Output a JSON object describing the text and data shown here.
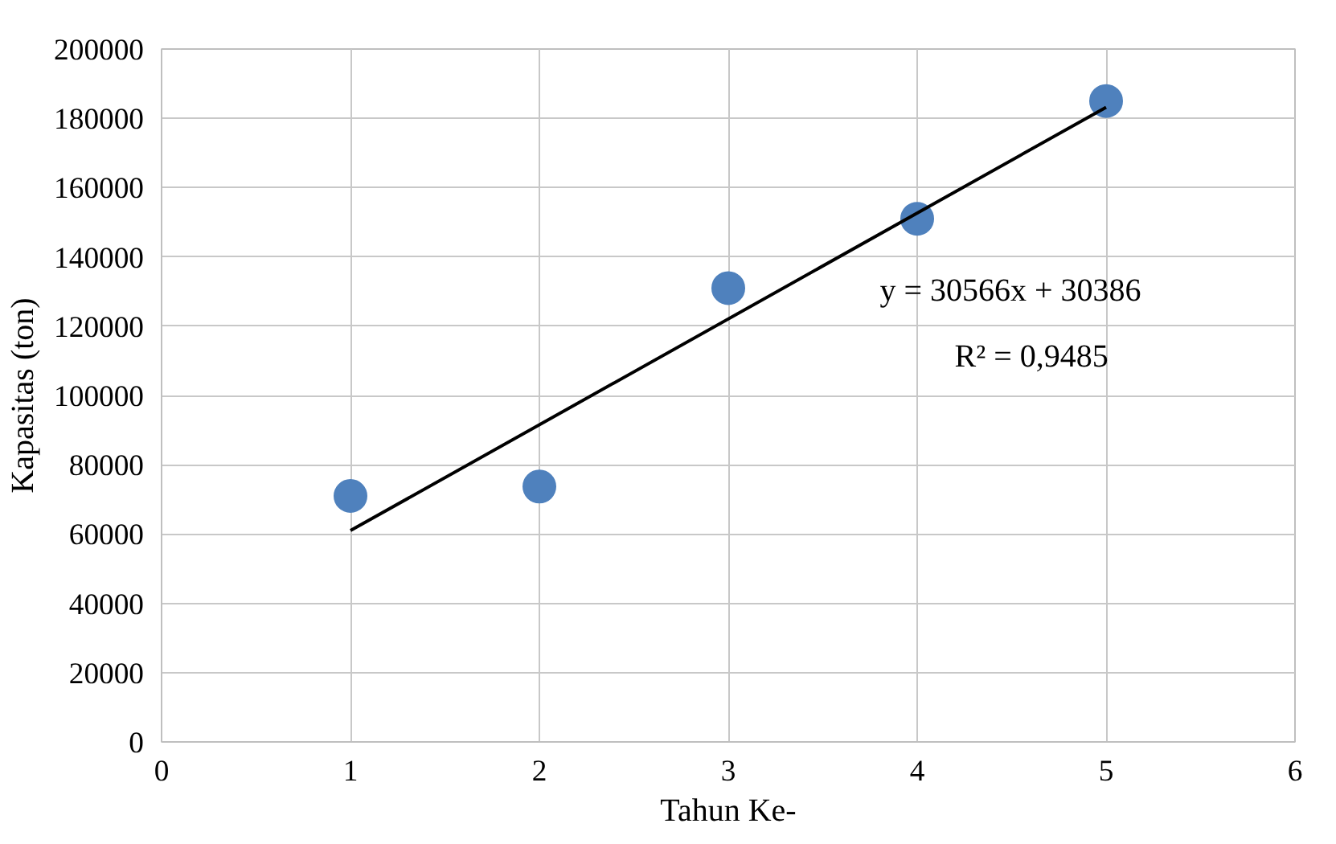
{
  "chart_data": {
    "type": "scatter",
    "xlabel": "Tahun Ke-",
    "ylabel": "Kapasitas (ton)",
    "series": [
      {
        "color": "#4f81bd",
        "marker": "circle",
        "x": [
          1,
          2,
          3,
          4,
          5
        ],
        "values": [
          71000,
          73700,
          131000,
          151000,
          185000
        ]
      },
      {
        "type": "line",
        "color": "#000000",
        "x": [
          1,
          5
        ],
        "values": [
          61000,
          183200
        ]
      }
    ],
    "xlim": [
      0,
      6
    ],
    "xticks": [
      0,
      1,
      2,
      3,
      4,
      5,
      6
    ],
    "ylim": [
      0,
      200000
    ],
    "yticks": [
      0,
      20000,
      40000,
      60000,
      80000,
      100000,
      120000,
      140000,
      160000,
      180000,
      200000
    ],
    "annotations": [
      "y = 30566x + 30386",
      "R² = 0,9485"
    ],
    "grid": true,
    "line_style": "solid"
  }
}
